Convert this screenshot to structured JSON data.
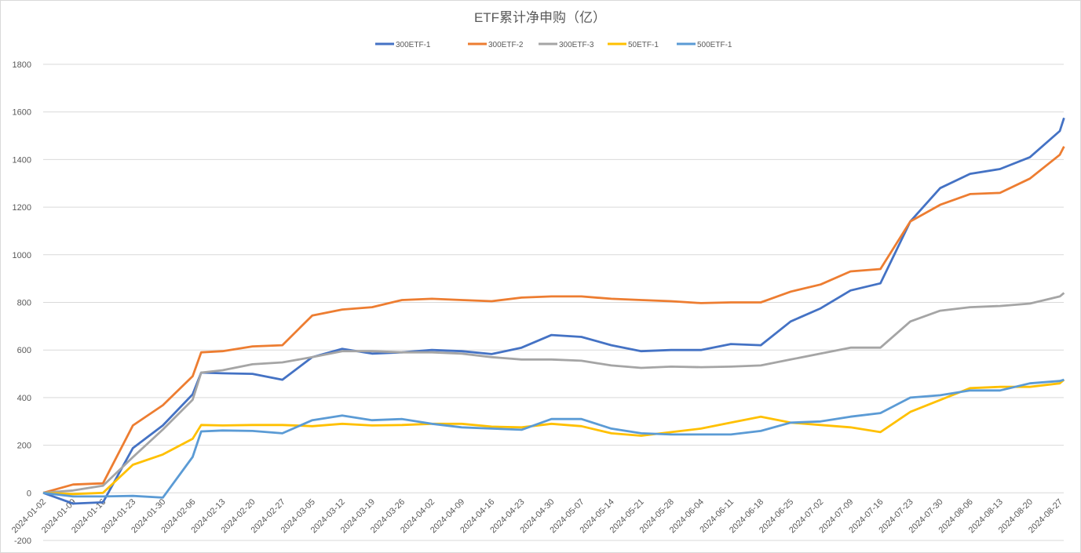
{
  "chart_data": {
    "type": "line",
    "title": "ETF累计净申购（亿）",
    "xlabel": "",
    "ylabel": "",
    "ylim": [
      -200,
      1800
    ],
    "yticks": [
      -200,
      0,
      200,
      400,
      600,
      800,
      1000,
      1200,
      1400,
      1600,
      1800
    ],
    "grid": true,
    "legend_position": "top",
    "xticks": [
      "2024-01-02",
      "2024-01-09",
      "2024-01-16",
      "2024-01-23",
      "2024-01-30",
      "2024-02-06",
      "2024-02-13",
      "2024-02-20",
      "2024-02-27",
      "2024-03-05",
      "2024-03-12",
      "2024-03-19",
      "2024-03-26",
      "2024-04-02",
      "2024-04-09",
      "2024-04-16",
      "2024-04-23",
      "2024-04-30",
      "2024-05-07",
      "2024-05-14",
      "2024-05-21",
      "2024-05-28",
      "2024-06-04",
      "2024-06-11",
      "2024-06-18",
      "2024-06-25",
      "2024-07-02",
      "2024-07-09",
      "2024-07-16",
      "2024-07-23",
      "2024-07-30",
      "2024-08-06",
      "2024-08-13",
      "2024-08-20",
      "2024-08-27"
    ],
    "x": [
      "2024-01-02",
      "2024-01-09",
      "2024-01-16",
      "2024-01-23",
      "2024-01-30",
      "2024-02-06",
      "2024-02-08",
      "2024-02-13",
      "2024-02-20",
      "2024-02-27",
      "2024-03-05",
      "2024-03-12",
      "2024-03-19",
      "2024-03-26",
      "2024-04-02",
      "2024-04-09",
      "2024-04-16",
      "2024-04-23",
      "2024-04-30",
      "2024-05-07",
      "2024-05-14",
      "2024-05-21",
      "2024-05-28",
      "2024-06-04",
      "2024-06-11",
      "2024-06-18",
      "2024-06-25",
      "2024-07-02",
      "2024-07-09",
      "2024-07-16",
      "2024-07-23",
      "2024-07-30",
      "2024-08-06",
      "2024-08-13",
      "2024-08-20",
      "2024-08-27",
      "2024-08-28"
    ],
    "series": [
      {
        "name": "300ETF-1",
        "color": "#4472C4",
        "values": [
          0,
          -45,
          -40,
          188,
          283,
          414,
          505,
          502,
          500,
          475,
          570,
          605,
          585,
          590,
          600,
          595,
          583,
          610,
          663,
          655,
          620,
          595,
          600,
          600,
          625,
          620,
          720,
          775,
          850,
          880,
          1140,
          1280,
          1340,
          1360,
          1410,
          1520,
          1575
        ]
      },
      {
        "name": "300ETF-2",
        "color": "#ED7D31",
        "values": [
          0,
          35,
          40,
          283,
          368,
          490,
          590,
          595,
          615,
          620,
          745,
          770,
          780,
          810,
          815,
          810,
          805,
          820,
          825,
          825,
          815,
          810,
          805,
          797,
          800,
          800,
          845,
          875,
          930,
          940,
          1140,
          1210,
          1255,
          1260,
          1320,
          1420,
          1455
        ]
      },
      {
        "name": "300ETF-3",
        "color": "#A5A5A5",
        "values": [
          0,
          10,
          30,
          150,
          266,
          391,
          505,
          515,
          540,
          548,
          570,
          595,
          595,
          590,
          590,
          585,
          570,
          560,
          560,
          555,
          535,
          525,
          530,
          528,
          530,
          535,
          560,
          585,
          610,
          610,
          720,
          765,
          780,
          785,
          795,
          825,
          840
        ]
      },
      {
        "name": "50ETF-1",
        "color": "#FFC000",
        "values": [
          0,
          -5,
          0,
          118,
          161,
          227,
          285,
          283,
          285,
          285,
          280,
          290,
          283,
          285,
          290,
          290,
          278,
          275,
          290,
          280,
          250,
          240,
          255,
          270,
          295,
          320,
          295,
          285,
          275,
          255,
          340,
          390,
          440,
          445,
          445,
          460,
          475
        ]
      },
      {
        "name": "500ETF-1",
        "color": "#5B9BD5",
        "values": [
          0,
          -15,
          -15,
          -13,
          -20,
          151,
          258,
          262,
          260,
          250,
          305,
          325,
          305,
          310,
          290,
          275,
          270,
          265,
          310,
          310,
          270,
          250,
          245,
          245,
          245,
          260,
          295,
          300,
          320,
          335,
          400,
          410,
          430,
          430,
          460,
          470,
          475
        ]
      }
    ]
  }
}
